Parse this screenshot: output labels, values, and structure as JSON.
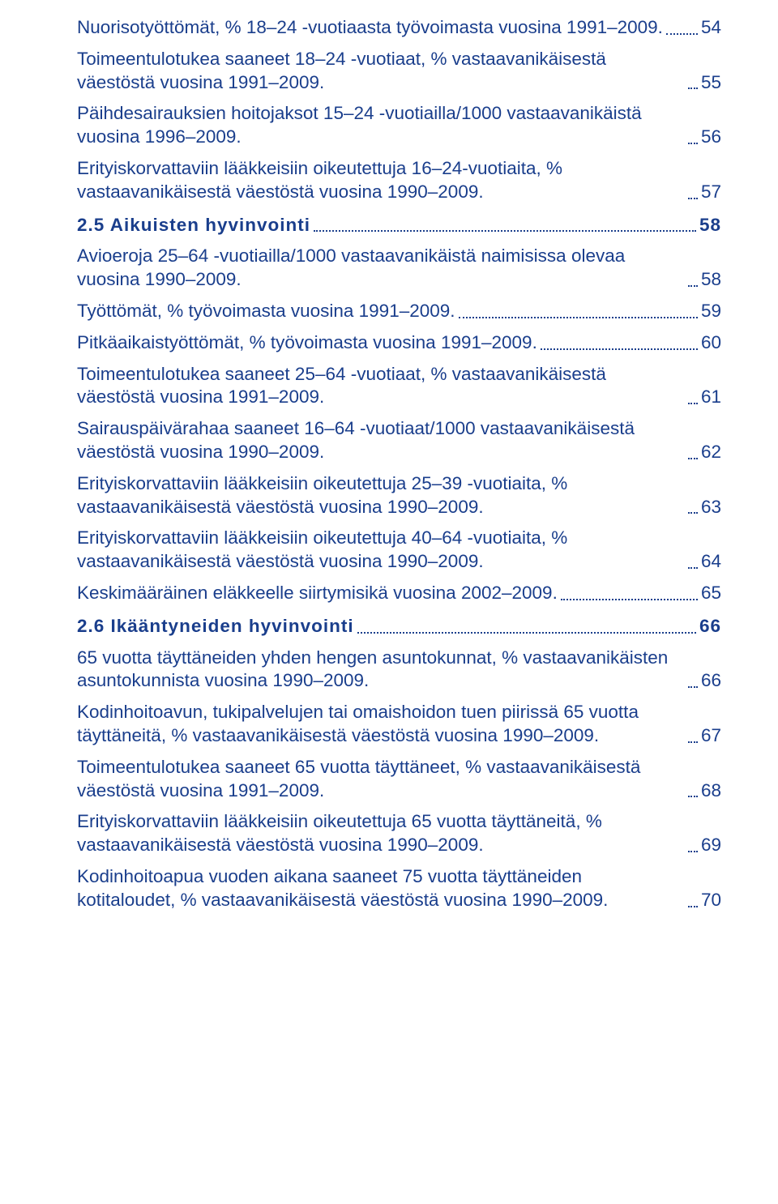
{
  "textColor": "#1a3e8c",
  "backgroundColor": "#ffffff",
  "fontFamily": "Verdana, Geneva, sans-serif",
  "baseFontSize": 22.5,
  "entries": [
    {
      "text": "Nuorisotyöttömät, % 18–24 -vuotiaasta työvoimasta vuosina 1991–2009.",
      "page": "54",
      "heading": false
    },
    {
      "text": "Toimeentulotukea saaneet 18–24 -vuotiaat, % vastaavanikäisestä väestöstä vuosina 1991–2009.",
      "page": "55",
      "heading": false
    },
    {
      "text": "Päihdesairauksien hoitojaksot 15–24 -vuotiailla/1000 vastaavanikäistä vuosina 1996–2009.",
      "page": "56",
      "heading": false
    },
    {
      "text": "Erityiskorvattaviin lääkkeisiin oikeutettuja 16–24-vuotiaita, % vastaavanikäisestä väestöstä vuosina 1990–2009.",
      "page": "57",
      "heading": false
    },
    {
      "text": "2.5  Aikuisten hyvinvointi",
      "page": "58",
      "heading": true
    },
    {
      "text": "Avioeroja 25–64 -vuotiailla/1000 vastaavanikäistä naimisissa olevaa vuosina 1990–2009.",
      "page": "58",
      "heading": false
    },
    {
      "text": "Työttömät, % työvoimasta vuosina 1991–2009.",
      "page": "59",
      "heading": false
    },
    {
      "text": "Pitkäaikaistyöttömät, % työvoimasta vuosina 1991–2009.",
      "page": "60",
      "heading": false
    },
    {
      "text": "Toimeentulotukea saaneet 25–64 -vuotiaat, % vastaavanikäisestä väestöstä vuosina 1991–2009.",
      "page": "61",
      "heading": false
    },
    {
      "text": "Sairauspäivärahaa saaneet 16–64 -vuotiaat/1000 vastaavanikäisestä väestöstä vuosina 1990–2009.",
      "page": "62",
      "heading": false
    },
    {
      "text": "Erityiskorvattaviin lääkkeisiin oikeutettuja 25–39 -vuotiaita, % vastaavanikäisestä väestöstä vuosina 1990–2009.",
      "page": "63",
      "heading": false
    },
    {
      "text": "Erityiskorvattaviin lääkkeisiin oikeutettuja 40–64 -vuotiaita, % vastaavanikäisestä väestöstä vuosina 1990–2009.",
      "page": "64",
      "heading": false
    },
    {
      "text": "Keskimääräinen eläkkeelle siirtymisikä vuosina 2002–2009.",
      "page": "65",
      "heading": false
    },
    {
      "text": "2.6  Ikääntyneiden hyvinvointi",
      "page": "66",
      "heading": true
    },
    {
      "text": "65 vuotta täyttäneiden yhden hengen asuntokunnat, % vastaavanikäisten asuntokunnista vuosina 1990–2009.",
      "page": "66",
      "heading": false
    },
    {
      "text": "Kodinhoitoavun, tukipalvelujen tai omaishoidon tuen piirissä 65 vuotta täyttäneitä, % vastaavanikäisestä väestöstä vuosina 1990–2009.",
      "page": "67",
      "heading": false
    },
    {
      "text": "Toimeentulotukea saaneet 65 vuotta täyttäneet, % vastaavanikäisestä väestöstä vuosina 1991–2009.",
      "page": "68",
      "heading": false
    },
    {
      "text": "Erityiskorvattaviin lääkkeisiin oikeutettuja 65 vuotta täyttäneitä, % vastaavanikäisestä väestöstä vuosina 1990–2009.",
      "page": "69",
      "heading": false
    },
    {
      "text": "Kodinhoitoapua vuoden aikana saaneet 75 vuotta täyttäneiden kotitaloudet, % vastaavanikäisestä väestöstä vuosina 1990–2009.",
      "page": "70",
      "heading": false
    }
  ]
}
